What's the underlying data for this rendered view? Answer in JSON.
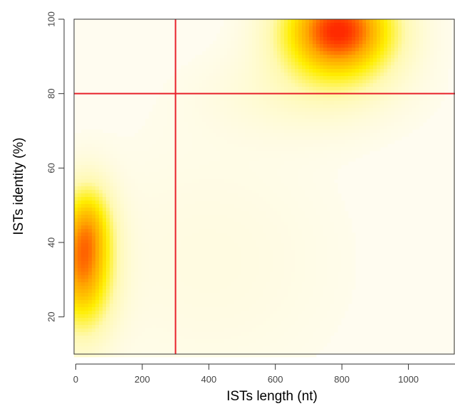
{
  "chart_data": {
    "type": "heatmap",
    "title": "",
    "xlabel": "ISTs length (nt)",
    "ylabel": "ISTs identity (%)",
    "xlim": [
      -5,
      1140
    ],
    "ylim": [
      10,
      100
    ],
    "x_ticks": [
      0,
      200,
      400,
      600,
      800,
      1000
    ],
    "y_ticks": [
      20,
      40,
      60,
      80,
      100
    ],
    "grid": false,
    "legend": "none",
    "colormap": [
      "#fffcf0",
      "#fff9b0",
      "#ffee00",
      "#ffa600",
      "#ff2a00"
    ],
    "density_peaks": [
      {
        "x": 790,
        "y": 97,
        "sx": 120,
        "sy": 9,
        "weight": 1.0
      },
      {
        "x": 20,
        "y": 33,
        "sx": 65,
        "sy": 12,
        "weight": 0.75
      },
      {
        "x": 40,
        "y": 46,
        "sx": 50,
        "sy": 8,
        "weight": 0.3
      },
      {
        "x": 400,
        "y": 35,
        "sx": 300,
        "sy": 25,
        "weight": 0.06
      },
      {
        "x": 700,
        "y": 80,
        "sx": 200,
        "sy": 8,
        "weight": 0.12
      }
    ],
    "reference_lines": [
      {
        "axis": "x",
        "value": 300,
        "color": "#e8202a"
      },
      {
        "axis": "y",
        "value": 80,
        "color": "#e8202a"
      }
    ]
  }
}
